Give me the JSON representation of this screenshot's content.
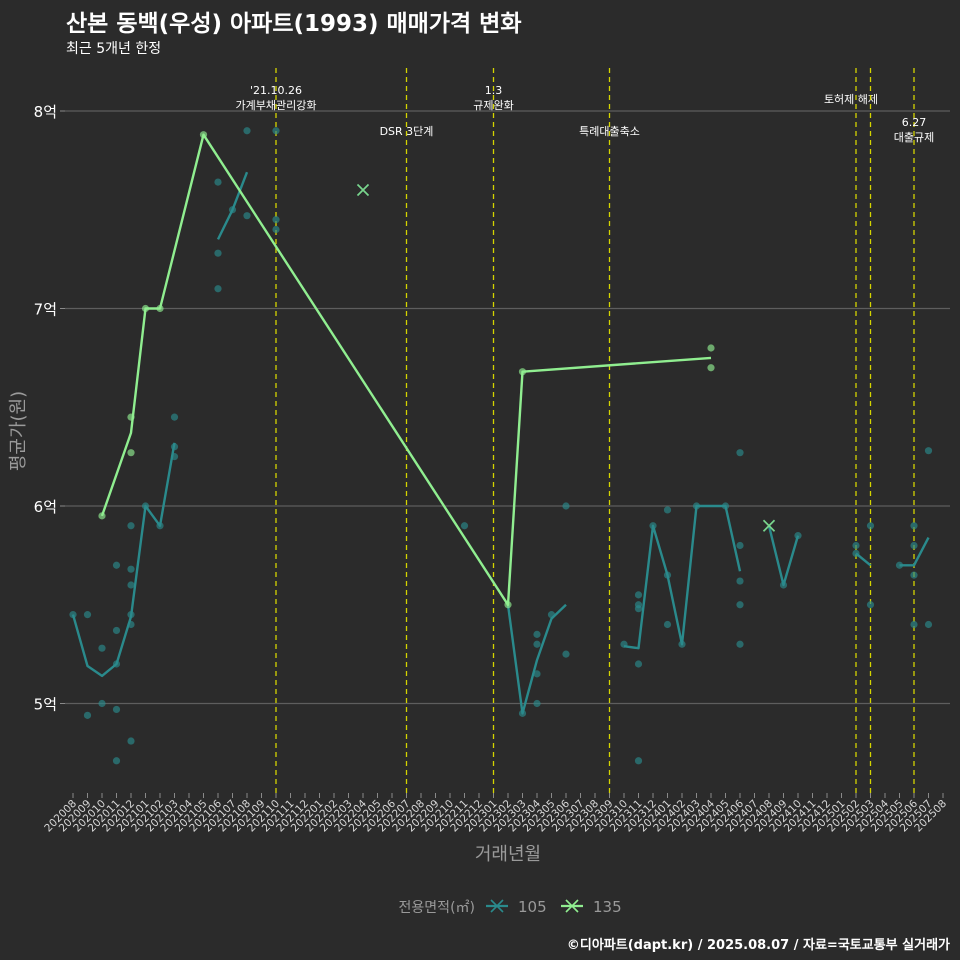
{
  "title": "산본 동백(우성) 아파트(1993) 매매가격 변화",
  "subtitle": "최근 5개년 한정",
  "caption": "©디아파트(dapt.kr) / 2025.08.07 / 자료=국토교통부 실거래가",
  "chart_data": {
    "type": "line",
    "xlabel": "거래년월",
    "ylabel": "평균가(원)",
    "ylim": [
      4.55,
      8.2
    ],
    "yticks": [
      {
        "v": 5,
        "label": "5억"
      },
      {
        "v": 6,
        "label": "6억"
      },
      {
        "v": 7,
        "label": "7억"
      },
      {
        "v": 8,
        "label": "8억"
      }
    ],
    "months": [
      "202008",
      "202009",
      "202010",
      "202011",
      "202012",
      "202101",
      "202102",
      "202103",
      "202104",
      "202105",
      "202106",
      "202107",
      "202108",
      "202109",
      "202110",
      "202111",
      "202112",
      "202201",
      "202202",
      "202203",
      "202204",
      "202205",
      "202206",
      "202207",
      "202208",
      "202209",
      "202210",
      "202211",
      "202212",
      "202301",
      "202302",
      "202303",
      "202304",
      "202305",
      "202306",
      "202307",
      "202308",
      "202309",
      "202310",
      "202311",
      "202312",
      "202401",
      "202402",
      "202403",
      "202404",
      "202405",
      "202406",
      "202407",
      "202408",
      "202409",
      "202410",
      "202411",
      "202412",
      "202501",
      "202502",
      "202503",
      "202504",
      "202505",
      "202506",
      "202507",
      "202508"
    ],
    "legend_title": "전용면적(㎡)",
    "series": [
      {
        "name": "105",
        "color": "#2a8a8c",
        "line": [
          [
            [
              0,
              5.45
            ],
            [
              1,
              5.19
            ],
            [
              2,
              5.14
            ],
            [
              3,
              5.2
            ],
            [
              4,
              5.44
            ],
            [
              5,
              6.0
            ],
            [
              6,
              5.9
            ],
            [
              7,
              6.32
            ]
          ],
          [
            [
              10,
              7.35
            ],
            [
              11,
              7.5
            ],
            [
              12,
              7.69
            ]
          ],
          [
            [
              30,
              5.5
            ],
            [
              31,
              4.95
            ],
            [
              32,
              5.22
            ],
            [
              33,
              5.43
            ],
            [
              34,
              5.5
            ]
          ],
          [
            [
              38,
              5.29
            ],
            [
              39,
              5.28
            ],
            [
              40,
              5.9
            ],
            [
              41,
              5.65
            ],
            [
              42,
              5.3
            ],
            [
              43,
              6.0
            ],
            [
              44,
              6.0
            ],
            [
              45,
              6.0
            ],
            [
              46,
              5.67
            ]
          ],
          [
            [
              48,
              5.9
            ],
            [
              49,
              5.6
            ],
            [
              50,
              5.85
            ]
          ],
          [
            [
              54,
              5.76
            ],
            [
              55,
              5.7
            ]
          ],
          [
            [
              57,
              5.7
            ],
            [
              58,
              5.7
            ],
            [
              59,
              5.84
            ]
          ]
        ],
        "points": [
          [
            0,
            5.45
          ],
          [
            1,
            5.45
          ],
          [
            1,
            4.94
          ],
          [
            2,
            5.28
          ],
          [
            2,
            5.0
          ],
          [
            3,
            5.7
          ],
          [
            3,
            5.37
          ],
          [
            3,
            5.2
          ],
          [
            3,
            4.97
          ],
          [
            3,
            4.71
          ],
          [
            4,
            5.9
          ],
          [
            4,
            5.68
          ],
          [
            4,
            5.6
          ],
          [
            4,
            5.45
          ],
          [
            4,
            5.4
          ],
          [
            4,
            4.81
          ],
          [
            5,
            6.0
          ],
          [
            6,
            5.9
          ],
          [
            7,
            6.45
          ],
          [
            7,
            6.3
          ],
          [
            7,
            6.25
          ],
          [
            10,
            7.64
          ],
          [
            10,
            7.28
          ],
          [
            10,
            7.1
          ],
          [
            11,
            7.5
          ],
          [
            12,
            7.9
          ],
          [
            12,
            7.47
          ],
          [
            14,
            7.9
          ],
          [
            14,
            7.45
          ],
          [
            14,
            7.4
          ],
          [
            27,
            5.9
          ],
          [
            31,
            4.95
          ],
          [
            32,
            5.35
          ],
          [
            32,
            5.3
          ],
          [
            32,
            5.15
          ],
          [
            32,
            5.0
          ],
          [
            33,
            5.45
          ],
          [
            34,
            6.0
          ],
          [
            34,
            5.25
          ],
          [
            38,
            5.3
          ],
          [
            39,
            5.55
          ],
          [
            39,
            5.5
          ],
          [
            39,
            5.48
          ],
          [
            39,
            5.2
          ],
          [
            39,
            4.71
          ],
          [
            40,
            5.9
          ],
          [
            41,
            5.98
          ],
          [
            41,
            5.65
          ],
          [
            41,
            5.4
          ],
          [
            42,
            5.3
          ],
          [
            43,
            6.0
          ],
          [
            45,
            6.0
          ],
          [
            46,
            6.27
          ],
          [
            46,
            5.8
          ],
          [
            46,
            5.62
          ],
          [
            46,
            5.5
          ],
          [
            46,
            5.3
          ],
          [
            49,
            5.6
          ],
          [
            50,
            5.85
          ],
          [
            54,
            5.8
          ],
          [
            54,
            5.76
          ],
          [
            55,
            5.9
          ],
          [
            55,
            5.5
          ],
          [
            57,
            5.7
          ],
          [
            58,
            5.9
          ],
          [
            58,
            5.8
          ],
          [
            58,
            5.65
          ],
          [
            58,
            5.4
          ],
          [
            59,
            6.28
          ],
          [
            59,
            5.4
          ]
        ],
        "crosses": [
          [
            20,
            7.6
          ],
          [
            48,
            5.9
          ]
        ]
      },
      {
        "name": "135",
        "color": "#90ee90",
        "line": [
          [
            [
              2,
              5.95
            ],
            [
              4,
              6.37
            ],
            [
              5,
              7.0
            ],
            [
              6,
              7.0
            ],
            [
              9,
              7.88
            ],
            [
              30,
              5.5
            ],
            [
              31,
              6.68
            ],
            [
              44,
              6.75
            ]
          ]
        ],
        "points": [
          [
            2,
            5.95
          ],
          [
            4,
            6.45
          ],
          [
            4,
            6.27
          ],
          [
            5,
            7.0
          ],
          [
            6,
            7.0
          ],
          [
            9,
            7.88
          ],
          [
            30,
            5.5
          ],
          [
            31,
            6.68
          ],
          [
            44,
            6.8
          ],
          [
            44,
            6.7
          ]
        ],
        "crosses": [
          [
            20,
            7.6
          ],
          [
            48,
            5.9
          ]
        ]
      }
    ],
    "events": [
      {
        "m": 14,
        "lines": [
          "'21.10.26",
          "가계부채관리강화"
        ],
        "pos": "top"
      },
      {
        "m": 23,
        "lines": [
          "DSR 3단계"
        ],
        "pos": "low"
      },
      {
        "m": 29,
        "lines": [
          "1.3",
          "규제완화"
        ],
        "pos": "top"
      },
      {
        "m": 37,
        "lines": [
          "특례대출축소"
        ],
        "pos": "low"
      },
      {
        "m": 54,
        "lines": [
          "토허제 해제"
        ],
        "pos": "mid",
        "shift": -5
      },
      {
        "m": 55,
        "lines": [],
        "pos": "none"
      },
      {
        "m": 58,
        "lines": [
          "6.27",
          "대출규제"
        ],
        "pos": "lower"
      }
    ]
  }
}
